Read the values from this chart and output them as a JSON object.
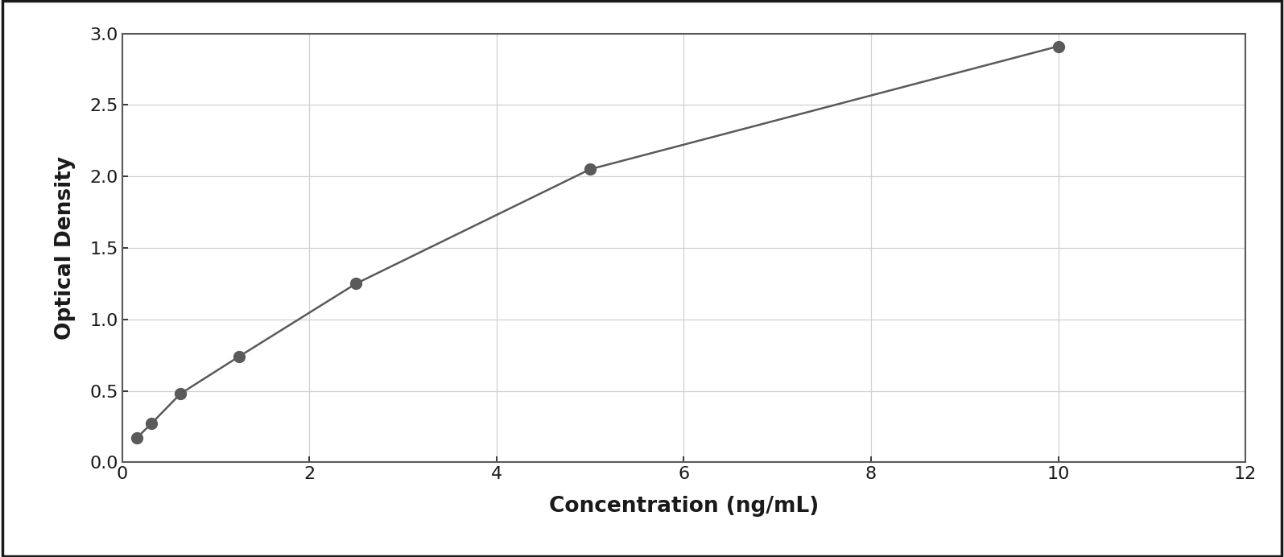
{
  "x_data": [
    0.156,
    0.313,
    0.625,
    1.25,
    2.5,
    5.0,
    10.0
  ],
  "y_data": [
    0.17,
    0.27,
    0.48,
    0.74,
    1.25,
    2.05,
    2.91
  ],
  "xlabel": "Concentration (ng/mL)",
  "ylabel": "Optical Density",
  "xlim": [
    0,
    12
  ],
  "ylim": [
    0,
    3
  ],
  "xticks": [
    0,
    2,
    4,
    6,
    8,
    10,
    12
  ],
  "yticks": [
    0,
    0.5,
    1.0,
    1.5,
    2.0,
    2.5,
    3.0
  ],
  "marker_color": "#5a5a5a",
  "line_color": "#5a5a5a",
  "grid_color": "#d0d0d0",
  "plot_bg_color": "#ffffff",
  "fig_bg_color": "#ffffff",
  "spine_color": "#5a5a5a",
  "marker_size": 100,
  "line_width": 1.8,
  "xlabel_fontsize": 19,
  "ylabel_fontsize": 19,
  "tick_fontsize": 16,
  "xlabel_fontweight": "bold",
  "ylabel_fontweight": "bold",
  "fig_border_color": "#1a1a1a",
  "outer_border_color": "#1a1a1a"
}
